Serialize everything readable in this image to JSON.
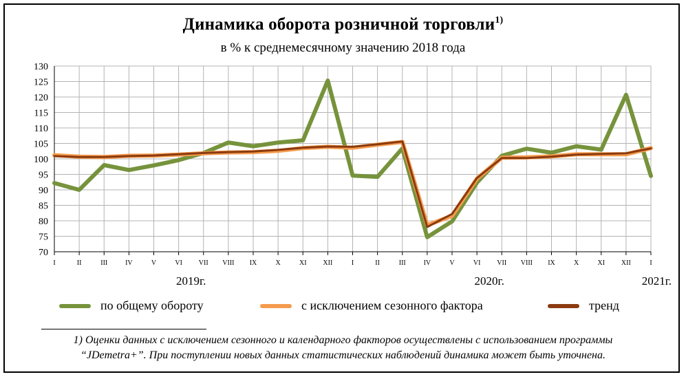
{
  "title": "Динамика оборота розничной торговли",
  "title_note": "1)",
  "subtitle": "в % к среднемесячному значению 2018 года",
  "chart_data": {
    "type": "line",
    "title": "Динамика оборота розничной торговли",
    "subtitle": "в % к среднемесячному значению 2018 года",
    "ylim": [
      70,
      130
    ],
    "yticks": [
      70,
      75,
      80,
      85,
      90,
      95,
      100,
      105,
      110,
      115,
      120,
      125,
      130
    ],
    "grid": true,
    "categories": [
      "I",
      "II",
      "III",
      "IV",
      "V",
      "VI",
      "VII",
      "VIII",
      "IX",
      "X",
      "XI",
      "XII",
      "I",
      "II",
      "III",
      "IV",
      "V",
      "VI",
      "VII",
      "VIII",
      "IX",
      "X",
      "XI",
      "XII",
      "I"
    ],
    "year_labels": [
      {
        "label": "2019г.",
        "at_index": 5.5
      },
      {
        "label": "2020г.",
        "at_index": 17.5
      },
      {
        "label": "2021г.",
        "at_index": 24
      }
    ],
    "series": [
      {
        "name": "по общему обороту",
        "color": "#76933c",
        "values": [
          92.2,
          90.0,
          98.0,
          96.4,
          97.9,
          99.6,
          101.9,
          105.3,
          104.1,
          105.3,
          106.0,
          125.3,
          94.6,
          94.2,
          103.4,
          74.7,
          79.8,
          92.3,
          101.0,
          103.3,
          102.0,
          104.1,
          103.0,
          120.7,
          94.5
        ]
      },
      {
        "name": "с исключением сезонного фактора",
        "color": "#f59b4e",
        "values": [
          101.2,
          100.7,
          100.6,
          101.0,
          101.1,
          101.4,
          101.8,
          102.1,
          102.2,
          102.6,
          103.5,
          103.9,
          103.6,
          104.6,
          105.5,
          78.6,
          81.6,
          93.6,
          100.4,
          100.5,
          100.8,
          101.5,
          101.5,
          101.5,
          103.5
        ]
      },
      {
        "name": "тренд",
        "color": "#8b3a0f",
        "values": [
          100.9,
          100.6,
          100.6,
          100.9,
          101.1,
          101.5,
          101.9,
          102.2,
          102.4,
          102.9,
          103.6,
          104.0,
          103.9,
          104.7,
          105.6,
          78.0,
          82.2,
          93.8,
          100.3,
          100.3,
          100.7,
          101.4,
          101.6,
          101.8,
          103.4
        ]
      }
    ]
  },
  "footnote": {
    "line1": "1) Оценки данных с исключением сезонного и календарного факторов осуществлены с использованием программы",
    "line2": "“JDemetra+”. При поступлении новых данных статистических наблюдений динамика может быть уточнена."
  }
}
